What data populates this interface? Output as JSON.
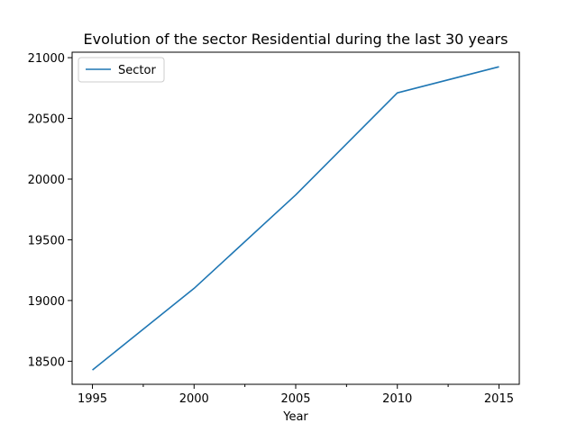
{
  "chart_data": {
    "type": "line",
    "title": "Evolution of the sector Residential during the last 30 years",
    "xlabel": "Year",
    "ylabel": "",
    "x": [
      1995,
      2000,
      2005,
      2010,
      2015
    ],
    "series": [
      {
        "name": "Sector",
        "values": [
          18428,
          19100,
          19870,
          20710,
          20925
        ],
        "color": "#1f77b4"
      }
    ],
    "xlim": [
      1994,
      2016
    ],
    "ylim": [
      18310,
      21045
    ],
    "xticks": [
      1995,
      2000,
      2005,
      2010,
      2015
    ],
    "x_minor_ticks": [
      1997.5,
      2002.5,
      2007.5,
      2012.5
    ],
    "yticks": [
      18500,
      19000,
      19500,
      20000,
      20500,
      21000
    ],
    "grid": false,
    "legend": "top-left"
  }
}
